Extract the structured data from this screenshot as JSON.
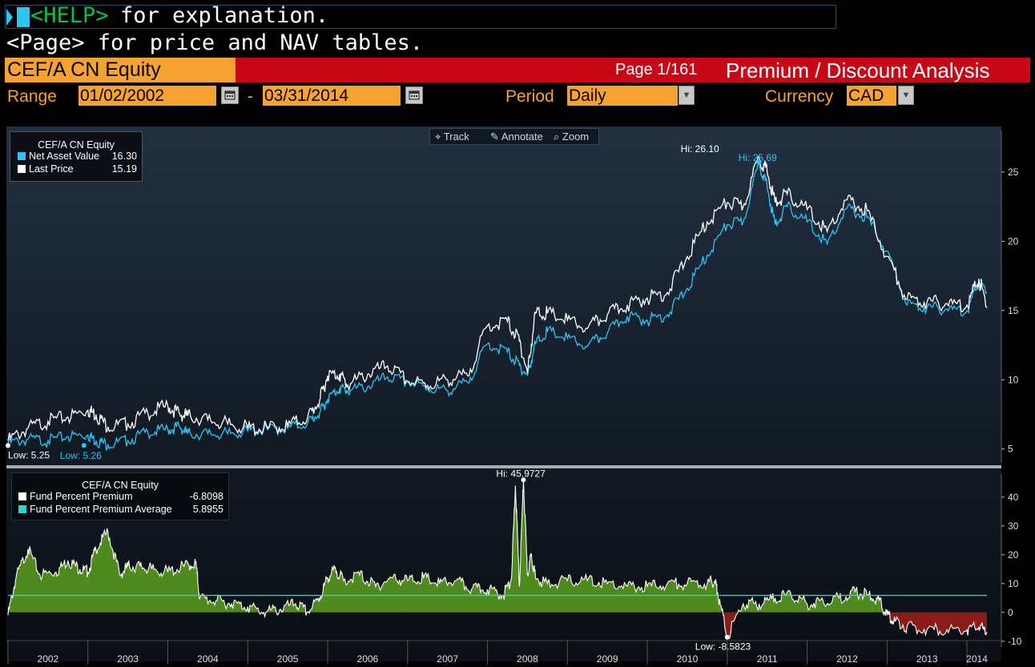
{
  "command_line": {
    "help_tag": "<HELP>",
    "help_text": " for explanation."
  },
  "page_hint": "<Page> for price and NAV tables.",
  "header": {
    "security": "CEF/A CN Equity",
    "page": "Page 1/161",
    "title": "Premium / Discount Analysis"
  },
  "controls": {
    "range_label": "Range",
    "start_date": "01/02/2002",
    "dash": "-",
    "end_date": "03/31/2014",
    "period_label": "Period",
    "period_value": "Daily",
    "currency_label": "Currency",
    "currency_value": "CAD"
  },
  "toolbar": {
    "track": "Track",
    "annotate": "Annotate",
    "zoom": "Zoom"
  },
  "upper_legend": {
    "title": "CEF/A CN Equity",
    "items": [
      {
        "label": "Net Asset Value",
        "value": "16.30",
        "color": "#2ec4f0"
      },
      {
        "label": "Last Price",
        "value": "15.19",
        "color": "#ffffff"
      }
    ]
  },
  "lower_legend": {
    "title": "CEF/A CN Equity",
    "items": [
      {
        "label": "Fund Percent Premium",
        "value": "-6.8098",
        "color": "#ffffff"
      },
      {
        "label": "Fund Percent Premium Average",
        "value": "5.8955",
        "color": "#25d8d0"
      }
    ]
  },
  "colors": {
    "nav": "#2ec4f0",
    "price": "#ffffff",
    "premium_fill": "#4f8a1e",
    "discount_fill": "#8b1a1a",
    "average": "#25d8d0",
    "accent": "#f6a232",
    "title_red": "#c80817"
  },
  "chart_data": [
    {
      "type": "line",
      "x_unit": "year",
      "xlim": [
        2002.0,
        2014.25
      ],
      "ylim": [
        4,
        28
      ],
      "y_ticks": [
        5,
        10,
        15,
        20,
        25
      ],
      "annotations": {
        "hi_price": "Hi: 26.10",
        "hi_nav": "Hi: 25.69",
        "low_price": "Low: 5.25",
        "low_nav": "Low: 5.26"
      },
      "series": [
        {
          "name": "Last Price",
          "x": [
            2002.0,
            2002.25,
            2002.5,
            2002.75,
            2003.0,
            2003.1,
            2003.25,
            2003.5,
            2003.75,
            2004.0,
            2004.15,
            2004.25,
            2004.5,
            2004.75,
            2005.0,
            2005.25,
            2005.5,
            2005.75,
            2005.9,
            2006.0,
            2006.15,
            2006.25,
            2006.5,
            2006.75,
            2007.0,
            2007.25,
            2007.5,
            2007.75,
            2008.0,
            2008.25,
            2008.4,
            2008.5,
            2008.6,
            2008.75,
            2009.0,
            2009.25,
            2009.5,
            2009.75,
            2010.0,
            2010.25,
            2010.5,
            2010.75,
            2011.0,
            2011.2,
            2011.4,
            2011.5,
            2011.6,
            2011.75,
            2012.0,
            2012.25,
            2012.5,
            2012.75,
            2013.0,
            2013.25,
            2013.5,
            2013.75,
            2014.0,
            2014.15,
            2014.25
          ],
          "values": [
            5.6,
            6.5,
            7.0,
            7.3,
            7.8,
            7.5,
            6.6,
            6.8,
            7.6,
            8.1,
            7.5,
            7.4,
            7.1,
            6.8,
            6.5,
            6.5,
            6.7,
            7.3,
            8.5,
            10.3,
            10.4,
            9.6,
            10.4,
            11.0,
            9.9,
            9.6,
            10.0,
            10.3,
            13.9,
            14.2,
            12.8,
            10.5,
            14.8,
            14.8,
            14.3,
            13.7,
            14.7,
            15.4,
            15.9,
            16.3,
            18.9,
            21.4,
            22.8,
            22.5,
            26.1,
            25.0,
            22.8,
            23.4,
            22.3,
            20.7,
            23.0,
            22.2,
            18.9,
            15.8,
            15.6,
            15.5,
            15.4,
            17.3,
            15.19
          ]
        },
        {
          "name": "Net Asset Value",
          "x": [
            2002.0,
            2002.25,
            2002.5,
            2002.75,
            2003.0,
            2003.1,
            2003.25,
            2003.5,
            2003.75,
            2004.0,
            2004.15,
            2004.25,
            2004.5,
            2004.75,
            2005.0,
            2005.25,
            2005.5,
            2005.75,
            2005.9,
            2006.0,
            2006.15,
            2006.25,
            2006.5,
            2006.75,
            2007.0,
            2007.25,
            2007.5,
            2007.75,
            2008.0,
            2008.25,
            2008.4,
            2008.5,
            2008.6,
            2008.75,
            2009.0,
            2009.25,
            2009.5,
            2009.75,
            2010.0,
            2010.25,
            2010.5,
            2010.75,
            2011.0,
            2011.2,
            2011.4,
            2011.5,
            2011.6,
            2011.75,
            2012.0,
            2012.25,
            2012.5,
            2012.75,
            2013.0,
            2013.25,
            2013.5,
            2013.75,
            2014.0,
            2014.15,
            2014.25
          ],
          "values": [
            5.4,
            5.7,
            5.6,
            5.9,
            6.0,
            5.6,
            5.3,
            5.6,
            6.2,
            6.4,
            6.6,
            6.1,
            6.1,
            6.1,
            6.3,
            6.4,
            6.5,
            6.9,
            7.6,
            8.6,
            9.4,
            9.2,
            9.5,
            10.2,
            9.8,
            9.4,
            9.2,
            9.8,
            12.6,
            12.0,
            11.0,
            10.3,
            12.6,
            13.5,
            13.0,
            12.4,
            13.4,
            14.6,
            14.3,
            14.7,
            16.6,
            19.0,
            21.2,
            21.4,
            25.69,
            23.9,
            21.2,
            22.5,
            21.4,
            19.8,
            22.4,
            21.7,
            19.3,
            15.4,
            15.2,
            15.1,
            15.0,
            17.1,
            16.3
          ]
        }
      ]
    },
    {
      "type": "area",
      "x_unit": "year",
      "xlim": [
        2002.0,
        2014.25
      ],
      "ylim": [
        -12,
        48
      ],
      "y_ticks": [
        -10,
        0,
        10,
        20,
        30,
        40
      ],
      "x_tick_labels": [
        "2002",
        "2003",
        "2004",
        "2005",
        "2006",
        "2007",
        "2008",
        "2009",
        "2010",
        "2011",
        "2012",
        "2013",
        "2014"
      ],
      "average": 5.8955,
      "annotations": {
        "hi": "Hi: 45.9727",
        "low": "Low: -8.5823"
      },
      "series": [
        {
          "name": "Fund Percent Premium",
          "x": [
            2002.0,
            2002.1,
            2002.25,
            2002.4,
            2002.6,
            2002.75,
            2002.9,
            2003.0,
            2003.1,
            2003.25,
            2003.4,
            2003.5,
            2003.65,
            2003.8,
            2004.0,
            2004.2,
            2004.35,
            2004.4,
            2004.6,
            2004.8,
            2005.0,
            2005.2,
            2005.4,
            2005.6,
            2005.75,
            2005.9,
            2006.0,
            2006.1,
            2006.2,
            2006.4,
            2006.6,
            2006.8,
            2007.0,
            2007.2,
            2007.4,
            2007.6,
            2007.8,
            2008.0,
            2008.2,
            2008.3,
            2008.35,
            2008.4,
            2008.45,
            2008.5,
            2008.55,
            2008.6,
            2008.75,
            2009.0,
            2009.25,
            2009.5,
            2009.75,
            2010.0,
            2010.25,
            2010.5,
            2010.75,
            2010.85,
            2010.88,
            2011.0,
            2011.2,
            2011.4,
            2011.6,
            2011.8,
            2012.0,
            2012.2,
            2012.4,
            2012.6,
            2012.75,
            2012.9,
            2013.0,
            2013.1,
            2013.25,
            2013.5,
            2013.75,
            2014.0,
            2014.15,
            2014.25
          ],
          "values": [
            -1,
            12,
            22,
            13,
            14,
            18,
            15,
            14,
            22,
            28,
            13,
            16,
            16,
            15,
            14,
            16,
            17,
            5,
            4,
            3,
            2,
            0,
            1,
            3,
            0,
            5,
            12,
            15,
            11,
            13,
            9,
            12,
            11,
            12,
            10,
            11,
            8,
            8,
            6,
            12,
            44,
            9,
            45.9727,
            13,
            20,
            12,
            10,
            11,
            11,
            10,
            9,
            9,
            10,
            10,
            10,
            11,
            7,
            -8.5823,
            3,
            3,
            5,
            6,
            3,
            4,
            5,
            7,
            6,
            4,
            -1,
            -3,
            -5,
            -6,
            -6,
            -6,
            -5,
            -6.8098
          ]
        }
      ]
    }
  ]
}
